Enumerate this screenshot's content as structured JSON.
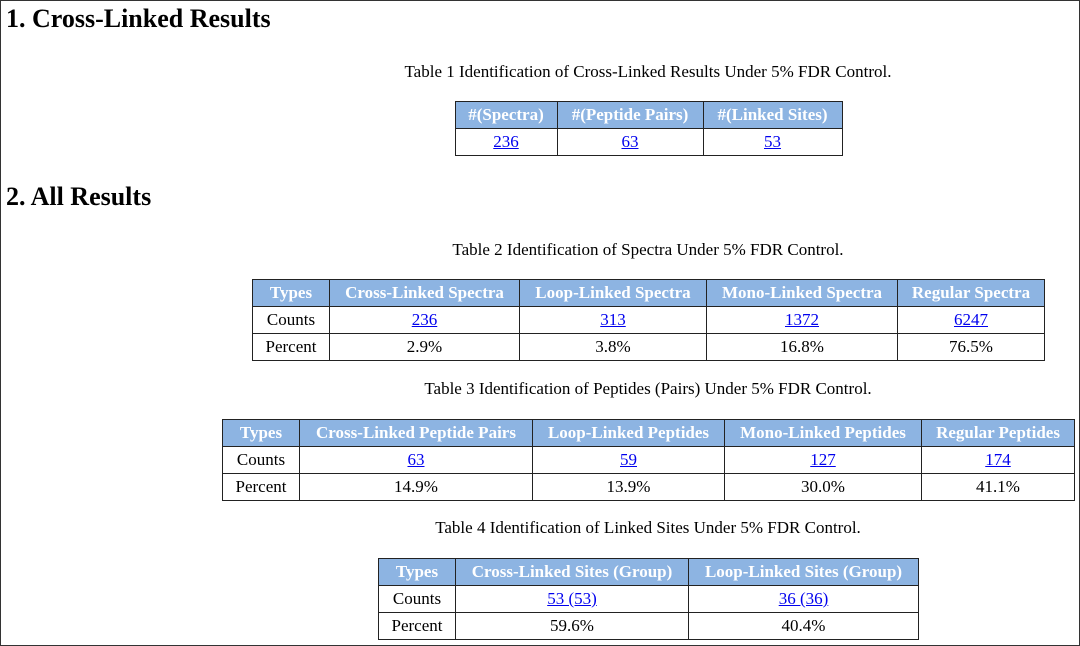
{
  "sections": [
    {
      "title": "1. Cross-Linked Results",
      "tables": [
        {
          "caption": "Table 1 Identification of Cross-Linked Results Under 5% FDR Control.",
          "header": [
            "#(Spectra)",
            "#(Peptide Pairs)",
            "#(Linked Sites)"
          ],
          "rows": [
            [
              "236",
              "63",
              "53"
            ]
          ]
        }
      ]
    },
    {
      "title": "2. All Results",
      "tables": [
        {
          "caption": "Table 2 Identification of Spectra Under 5% FDR Control.",
          "header": [
            "Types",
            "Cross-Linked Spectra",
            "Loop-Linked Spectra",
            "Mono-Linked Spectra",
            "Regular Spectra"
          ],
          "rows": [
            [
              "Counts",
              "236",
              "313",
              "1372",
              "6247"
            ],
            [
              "Percent",
              "2.9%",
              "3.8%",
              "16.8%",
              "76.5%"
            ]
          ]
        },
        {
          "caption": "Table 3 Identification of Peptides (Pairs) Under 5% FDR Control.",
          "header": [
            "Types",
            "Cross-Linked Peptide Pairs",
            "Loop-Linked Peptides",
            "Mono-Linked Peptides",
            "Regular Peptides"
          ],
          "rows": [
            [
              "Counts",
              "63",
              "59",
              "127",
              "174"
            ],
            [
              "Percent",
              "14.9%",
              "13.9%",
              "30.0%",
              "41.1%"
            ]
          ]
        },
        {
          "caption": "Table 4 Identification of Linked Sites Under 5% FDR Control.",
          "header": [
            "Types",
            "Cross-Linked Sites (Group)",
            "Loop-Linked Sites (Group)"
          ],
          "rows": [
            [
              "Counts",
              "53 (53)",
              "36 (36)"
            ],
            [
              "Percent",
              "59.6%",
              "40.4%"
            ]
          ]
        }
      ]
    }
  ]
}
